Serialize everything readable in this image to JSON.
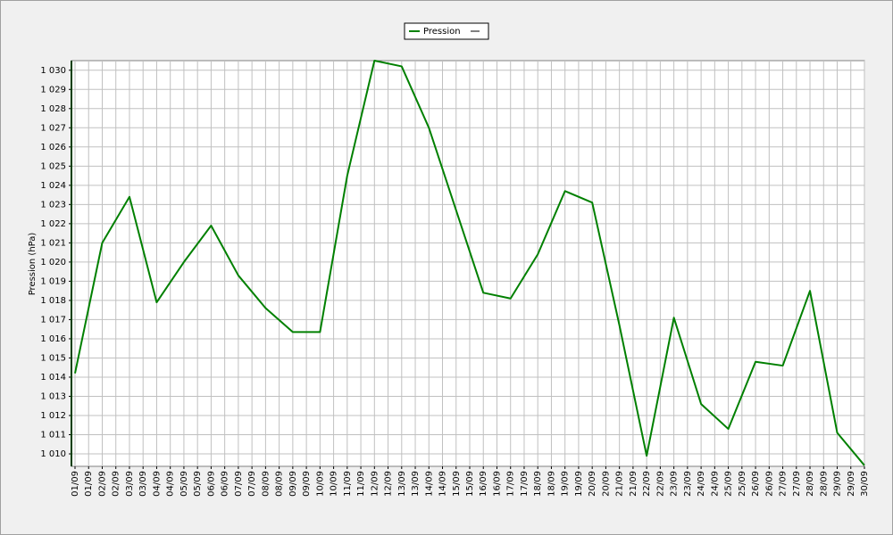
{
  "chart_data": {
    "type": "line",
    "y_label": "Pression (hPa)",
    "x": [
      1,
      2,
      3,
      4,
      5,
      6,
      7,
      8,
      9,
      10,
      11,
      12,
      13,
      14,
      15,
      16,
      17,
      18,
      19,
      20,
      21,
      22,
      23,
      24,
      25,
      26,
      27,
      28,
      29,
      30
    ],
    "series": [
      {
        "name": "Pression",
        "color": "#008000",
        "values": [
          1014.2,
          1021.0,
          1023.4,
          1017.9,
          1020.0,
          1021.9,
          1019.3,
          1017.6,
          1016.35,
          1016.35,
          1024.5,
          1030.5,
          1030.2,
          1027.0,
          1022.7,
          1018.4,
          1018.1,
          1020.4,
          1023.7,
          1023.1,
          1016.7,
          1009.9,
          1017.1,
          1012.6,
          1011.3,
          1014.8,
          1014.6,
          1018.5,
          1011.1,
          1009.4
        ]
      }
    ],
    "xlim": [
      1,
      30
    ],
    "xticks": [
      {
        "value": 1,
        "label": "01/09"
      },
      {
        "value": 1.5,
        "label": "01/09"
      },
      {
        "value": 2,
        "label": "02/09"
      },
      {
        "value": 2.5,
        "label": "02/09"
      },
      {
        "value": 3,
        "label": "03/09"
      },
      {
        "value": 3.5,
        "label": "03/09"
      },
      {
        "value": 4,
        "label": "04/09"
      },
      {
        "value": 4.5,
        "label": "04/09"
      },
      {
        "value": 5,
        "label": "05/09"
      },
      {
        "value": 5.5,
        "label": "05/09"
      },
      {
        "value": 6,
        "label": "06/09"
      },
      {
        "value": 6.5,
        "label": "06/09"
      },
      {
        "value": 7,
        "label": "07/09"
      },
      {
        "value": 7.5,
        "label": "07/09"
      },
      {
        "value": 8,
        "label": "08/09"
      },
      {
        "value": 8.5,
        "label": "08/09"
      },
      {
        "value": 9,
        "label": "09/09"
      },
      {
        "value": 9.5,
        "label": "09/09"
      },
      {
        "value": 10,
        "label": "10/09"
      },
      {
        "value": 10.5,
        "label": "10/09"
      },
      {
        "value": 11,
        "label": "11/09"
      },
      {
        "value": 11.5,
        "label": "11/09"
      },
      {
        "value": 12,
        "label": "12/09"
      },
      {
        "value": 12.5,
        "label": "12/09"
      },
      {
        "value": 13,
        "label": "13/09"
      },
      {
        "value": 13.5,
        "label": "13/09"
      },
      {
        "value": 14,
        "label": "14/09"
      },
      {
        "value": 14.5,
        "label": "14/09"
      },
      {
        "value": 15,
        "label": "15/09"
      },
      {
        "value": 15.5,
        "label": "15/09"
      },
      {
        "value": 16,
        "label": "16/09"
      },
      {
        "value": 16.5,
        "label": "16/09"
      },
      {
        "value": 17,
        "label": "17/09"
      },
      {
        "value": 17.5,
        "label": "17/09"
      },
      {
        "value": 18,
        "label": "18/09"
      },
      {
        "value": 18.5,
        "label": "18/09"
      },
      {
        "value": 19,
        "label": "19/09"
      },
      {
        "value": 19.5,
        "label": "19/09"
      },
      {
        "value": 20,
        "label": "20/09"
      },
      {
        "value": 20.5,
        "label": "20/09"
      },
      {
        "value": 21,
        "label": "21/09"
      },
      {
        "value": 21.5,
        "label": "21/09"
      },
      {
        "value": 22,
        "label": "22/09"
      },
      {
        "value": 22.5,
        "label": "22/09"
      },
      {
        "value": 23,
        "label": "23/09"
      },
      {
        "value": 23.5,
        "label": "23/09"
      },
      {
        "value": 24,
        "label": "24/09"
      },
      {
        "value": 24.5,
        "label": "24/09"
      },
      {
        "value": 25,
        "label": "25/09"
      },
      {
        "value": 25.5,
        "label": "25/09"
      },
      {
        "value": 26,
        "label": "26/09"
      },
      {
        "value": 26.5,
        "label": "26/09"
      },
      {
        "value": 27,
        "label": "27/09"
      },
      {
        "value": 27.5,
        "label": "27/09"
      },
      {
        "value": 28,
        "label": "28/09"
      },
      {
        "value": 28.5,
        "label": "28/09"
      },
      {
        "value": 29,
        "label": "29/09"
      },
      {
        "value": 29.5,
        "label": "29/09"
      },
      {
        "value": 30,
        "label": "30/09"
      }
    ],
    "ylim": [
      1009.35,
      1030.5
    ],
    "yticks": [
      {
        "value": 1010,
        "label": "1 010"
      },
      {
        "value": 1011,
        "label": "1 011"
      },
      {
        "value": 1012,
        "label": "1 012"
      },
      {
        "value": 1013,
        "label": "1 013"
      },
      {
        "value": 1014,
        "label": "1 014"
      },
      {
        "value": 1015,
        "label": "1 015"
      },
      {
        "value": 1016,
        "label": "1 016"
      },
      {
        "value": 1017,
        "label": "1 017"
      },
      {
        "value": 1018,
        "label": "1 018"
      },
      {
        "value": 1019,
        "label": "1 019"
      },
      {
        "value": 1020,
        "label": "1 020"
      },
      {
        "value": 1021,
        "label": "1 021"
      },
      {
        "value": 1022,
        "label": "1 022"
      },
      {
        "value": 1023,
        "label": "1 023"
      },
      {
        "value": 1024,
        "label": "1 024"
      },
      {
        "value": 1025,
        "label": "1 025"
      },
      {
        "value": 1026,
        "label": "1 026"
      },
      {
        "value": 1027,
        "label": "1 027"
      },
      {
        "value": 1028,
        "label": "1 028"
      },
      {
        "value": 1029,
        "label": "1 029"
      },
      {
        "value": 1030,
        "label": "1 030"
      }
    ],
    "grid": true
  }
}
